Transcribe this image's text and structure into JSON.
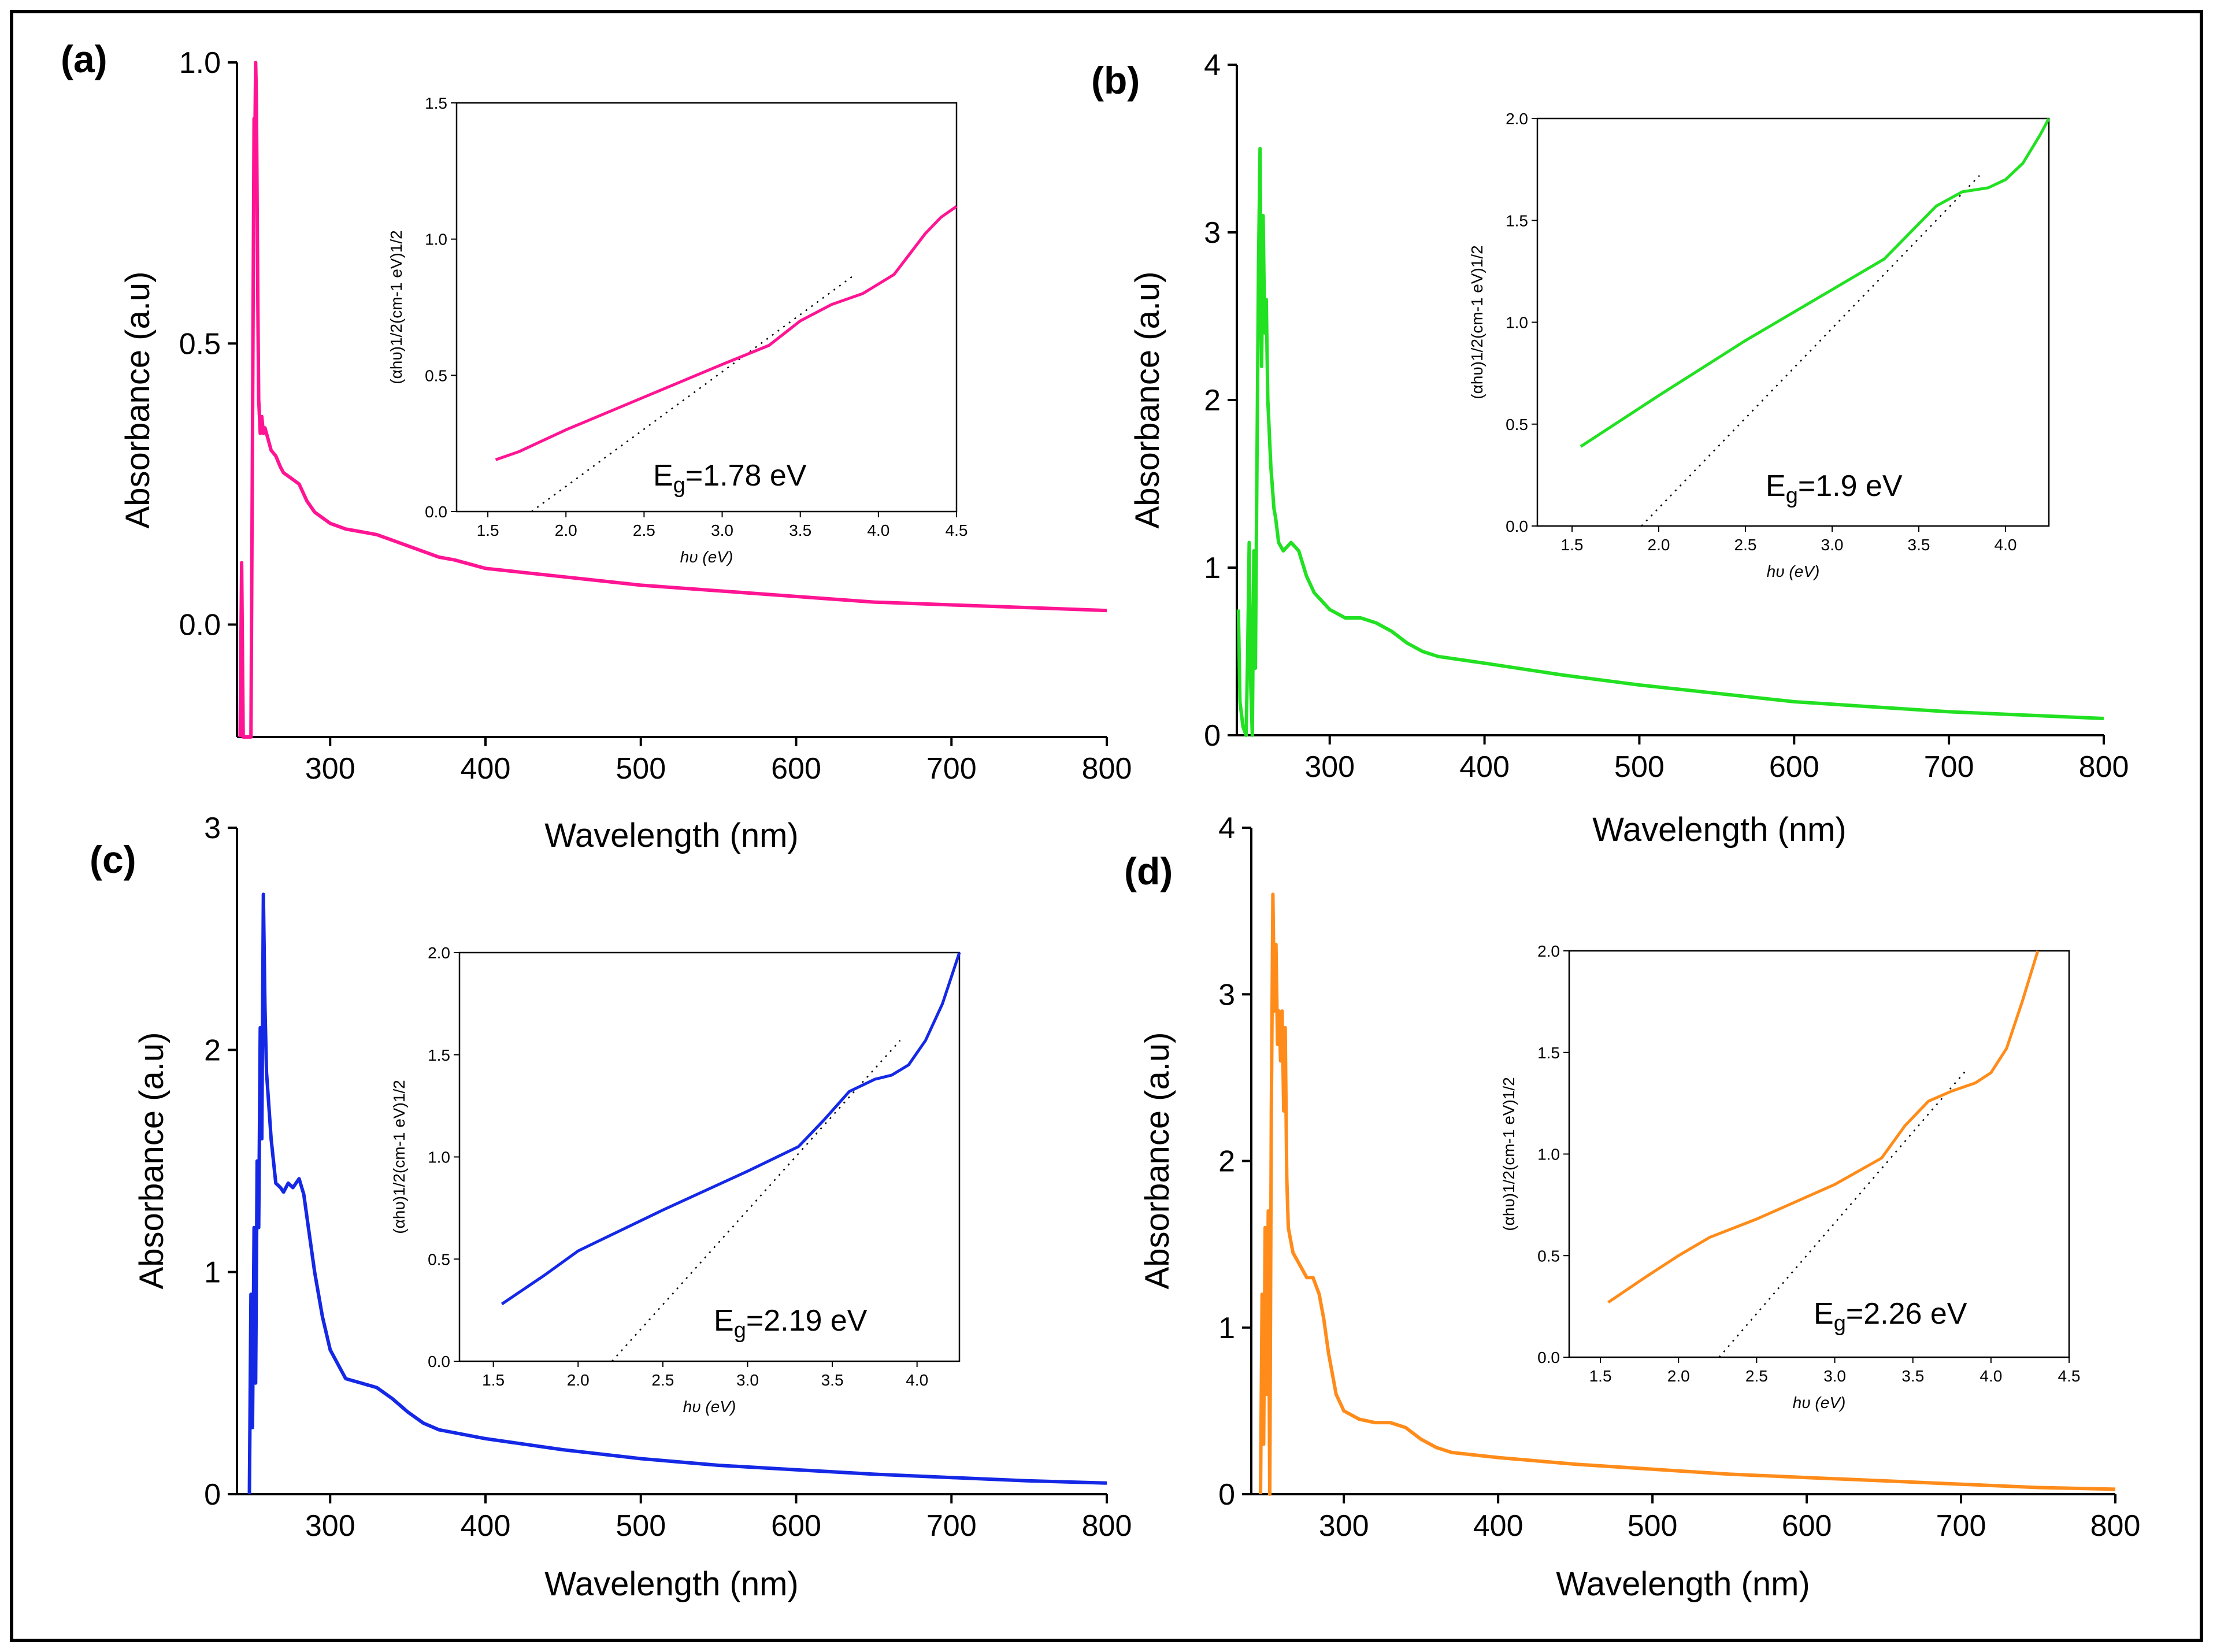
{
  "figure": {
    "border_color": "#000000"
  },
  "chart_data": [
    {
      "panel_label": "(a)",
      "type": "line",
      "color": "#ff1493",
      "xlabel": "Wavelength (nm)",
      "ylabel": "Absorbance (a.u)",
      "xlim": [
        240,
        800
      ],
      "ylim": [
        -0.2,
        1.0
      ],
      "xticks": [
        "300",
        "400",
        "500",
        "600",
        "700",
        "800"
      ],
      "xtick_values": [
        300,
        400,
        500,
        600,
        700,
        800
      ],
      "yticks": [
        "0.0",
        "0.5",
        "1.0"
      ],
      "ytick_values": [
        0.0,
        0.5,
        1.0
      ],
      "series": [
        {
          "x": [
            242,
            243,
            244,
            247,
            249,
            250,
            250.5,
            251,
            251.5,
            252,
            252.5,
            253,
            253.5,
            254,
            255,
            256,
            257,
            258,
            260,
            262,
            265,
            268,
            270,
            275,
            280,
            285,
            290,
            295,
            300,
            310,
            320,
            330,
            340,
            350,
            360,
            370,
            380,
            400,
            450,
            500,
            550,
            600,
            650,
            700,
            750,
            800
          ],
          "y": [
            -0.2,
            0.11,
            -0.2,
            -0.2,
            -0.2,
            0.34,
            0.62,
            0.9,
            0.85,
            1.0,
            0.94,
            0.75,
            0.55,
            0.4,
            0.34,
            0.37,
            0.34,
            0.35,
            0.33,
            0.31,
            0.3,
            0.28,
            0.27,
            0.26,
            0.25,
            0.22,
            0.2,
            0.19,
            0.18,
            0.17,
            0.165,
            0.16,
            0.15,
            0.14,
            0.13,
            0.12,
            0.115,
            0.1,
            0.085,
            0.07,
            0.06,
            0.05,
            0.04,
            0.035,
            0.03,
            0.025
          ]
        }
      ],
      "inset": {
        "xlabel": "hυ (eV)",
        "ylabel": "(αhυ)1/2(cm-1 eV)1/2",
        "xlim": [
          1.3,
          4.5
        ],
        "ylim": [
          0.0,
          1.5
        ],
        "xticks": [
          "1.5",
          "2.0",
          "2.5",
          "3.0",
          "3.5",
          "4.0",
          "4.5"
        ],
        "xtick_values": [
          1.5,
          2.0,
          2.5,
          3.0,
          3.5,
          4.0,
          4.5
        ],
        "yticks": [
          "0.0",
          "0.5",
          "1.0",
          "1.5"
        ],
        "ytick_values": [
          0.0,
          0.5,
          1.0,
          1.5
        ],
        "curve": {
          "x": [
            1.55,
            1.7,
            2.0,
            2.5,
            3.0,
            3.3,
            3.5,
            3.7,
            3.9,
            4.1,
            4.3,
            4.4,
            4.5
          ],
          "y": [
            0.19,
            0.22,
            0.3,
            0.42,
            0.54,
            0.61,
            0.7,
            0.76,
            0.8,
            0.87,
            1.02,
            1.08,
            1.12
          ]
        },
        "fit": {
          "x": [
            1.78,
            3.85
          ],
          "y": [
            0.0,
            0.87
          ]
        },
        "eg_main": "E",
        "eg_sub": "g",
        "eg_value": "=1.78 eV"
      }
    },
    {
      "panel_label": "(b)",
      "type": "line",
      "color": "#22e022",
      "xlabel": "Wavelength (nm)",
      "ylabel": "Absorbance (a.u)",
      "xlim": [
        240,
        800
      ],
      "ylim": [
        0,
        4
      ],
      "xticks": [
        "300",
        "400",
        "500",
        "600",
        "700",
        "800"
      ],
      "xtick_values": [
        300,
        400,
        500,
        600,
        700,
        800
      ],
      "yticks": [
        "0",
        "1",
        "2",
        "3",
        "4"
      ],
      "ytick_values": [
        0,
        1,
        2,
        3,
        4
      ],
      "series": [
        {
          "x": [
            241,
            242,
            244,
            246,
            247,
            248,
            249,
            250,
            251,
            252,
            253,
            254,
            255,
            256,
            257,
            258,
            259,
            260,
            262,
            264,
            265,
            267,
            270,
            275,
            280,
            285,
            290,
            295,
            300,
            310,
            320,
            330,
            340,
            350,
            360,
            370,
            400,
            450,
            500,
            550,
            600,
            650,
            700,
            750,
            800
          ],
          "y": [
            0.75,
            0.2,
            0.05,
            0.0,
            0.5,
            1.15,
            0.3,
            0.0,
            1.1,
            0.4,
            1.6,
            2.8,
            3.5,
            2.2,
            3.1,
            2.4,
            2.6,
            2.0,
            1.6,
            1.35,
            1.3,
            1.15,
            1.1,
            1.15,
            1.1,
            0.95,
            0.85,
            0.8,
            0.75,
            0.7,
            0.7,
            0.67,
            0.62,
            0.55,
            0.5,
            0.47,
            0.43,
            0.36,
            0.3,
            0.25,
            0.2,
            0.17,
            0.14,
            0.12,
            0.1
          ]
        }
      ],
      "inset": {
        "xlabel": "hυ (eV)",
        "ylabel": "(αhυ)1/2(cm-1 eV)1/2",
        "xlim": [
          1.3,
          4.25
        ],
        "ylim": [
          0.0,
          2.0
        ],
        "xticks": [
          "1.5",
          "2.0",
          "2.5",
          "3.0",
          "3.5",
          "4.0"
        ],
        "xtick_values": [
          1.5,
          2.0,
          2.5,
          3.0,
          3.5,
          4.0
        ],
        "yticks": [
          "0.0",
          "0.5",
          "1.0",
          "1.5",
          "2.0"
        ],
        "ytick_values": [
          0.0,
          0.5,
          1.0,
          1.5,
          2.0
        ],
        "curve": {
          "x": [
            1.55,
            2.0,
            2.5,
            3.0,
            3.3,
            3.45,
            3.6,
            3.75,
            3.9,
            4.0,
            4.1,
            4.2,
            4.25
          ],
          "y": [
            0.39,
            0.64,
            0.91,
            1.16,
            1.31,
            1.44,
            1.57,
            1.64,
            1.66,
            1.7,
            1.78,
            1.92,
            2.0
          ]
        },
        "fit": {
          "x": [
            1.9,
            3.85
          ],
          "y": [
            0.0,
            1.72
          ]
        },
        "eg_main": "E",
        "eg_sub": "g",
        "eg_value": "=1.9 eV"
      }
    },
    {
      "panel_label": "(c)",
      "type": "line",
      "color": "#1428e6",
      "xlabel": "Wavelength (nm)",
      "ylabel": "Absorbance (a.u)",
      "xlim": [
        240,
        800
      ],
      "ylim": [
        0,
        3
      ],
      "xticks": [
        "300",
        "400",
        "500",
        "600",
        "700",
        "800"
      ],
      "xtick_values": [
        300,
        400,
        500,
        600,
        700,
        800
      ],
      "yticks": [
        "0",
        "1",
        "2",
        "3"
      ],
      "ytick_values": [
        0,
        1,
        2,
        3
      ],
      "series": [
        {
          "x": [
            248,
            249,
            250,
            251,
            252,
            253,
            254,
            255,
            256,
            257,
            258,
            259,
            260,
            262,
            265,
            268,
            270,
            273,
            276,
            280,
            283,
            286,
            290,
            295,
            300,
            310,
            320,
            330,
            340,
            350,
            360,
            370,
            400,
            450,
            500,
            550,
            600,
            650,
            700,
            750,
            800
          ],
          "y": [
            0.0,
            0.9,
            0.3,
            1.2,
            0.5,
            1.5,
            1.2,
            2.1,
            1.6,
            2.7,
            2.2,
            1.9,
            1.8,
            1.6,
            1.4,
            1.38,
            1.36,
            1.4,
            1.38,
            1.42,
            1.35,
            1.2,
            1.0,
            0.8,
            0.65,
            0.52,
            0.5,
            0.48,
            0.43,
            0.37,
            0.32,
            0.29,
            0.25,
            0.2,
            0.16,
            0.13,
            0.11,
            0.09,
            0.075,
            0.06,
            0.05
          ]
        }
      ],
      "inset": {
        "xlabel": "hυ (eV)",
        "ylabel": "(αhυ)1/2(cm-1 eV)1/2",
        "xlim": [
          1.3,
          4.25
        ],
        "ylim": [
          0.0,
          2.0
        ],
        "xticks": [
          "1.5",
          "2.0",
          "2.5",
          "3.0",
          "3.5",
          "4.0"
        ],
        "xtick_values": [
          1.5,
          2.0,
          2.5,
          3.0,
          3.5,
          4.0
        ],
        "yticks": [
          "0.0",
          "0.5",
          "1.0",
          "1.5",
          "2.0"
        ],
        "ytick_values": [
          0.0,
          0.5,
          1.0,
          1.5,
          2.0
        ],
        "curve": {
          "x": [
            1.55,
            1.8,
            2.0,
            2.5,
            3.0,
            3.3,
            3.45,
            3.6,
            3.75,
            3.85,
            3.95,
            4.05,
            4.15,
            4.25
          ],
          "y": [
            0.28,
            0.42,
            0.54,
            0.74,
            0.93,
            1.05,
            1.18,
            1.32,
            1.38,
            1.4,
            1.45,
            1.57,
            1.75,
            2.0
          ]
        },
        "fit": {
          "x": [
            2.2,
            3.9
          ],
          "y": [
            0.0,
            1.57
          ]
        },
        "eg_main": "E",
        "eg_sub": "g",
        "eg_value": "=2.19 eV"
      }
    },
    {
      "panel_label": "(d)",
      "type": "line",
      "color": "#ff8c1a",
      "xlabel": "Wavelength (nm)",
      "ylabel": "Absorbance (a.u)",
      "xlim": [
        240,
        800
      ],
      "ylim": [
        0,
        4
      ],
      "xticks": [
        "300",
        "400",
        "500",
        "600",
        "700",
        "800"
      ],
      "xtick_values": [
        300,
        400,
        500,
        600,
        700,
        800
      ],
      "yticks": [
        "0",
        "1",
        "2",
        "3",
        "4"
      ],
      "ytick_values": [
        0,
        1,
        2,
        3,
        4
      ],
      "series": [
        {
          "x": [
            246,
            247,
            248,
            249,
            250,
            251,
            252,
            253,
            254,
            255,
            256,
            257,
            258,
            259,
            260,
            261,
            262,
            263,
            264,
            265,
            267,
            270,
            273,
            276,
            280,
            284,
            287,
            290,
            295,
            300,
            310,
            320,
            330,
            340,
            350,
            360,
            370,
            400,
            450,
            500,
            550,
            600,
            650,
            700,
            750,
            800
          ],
          "y": [
            0.0,
            1.2,
            0.3,
            1.6,
            0.6,
            1.7,
            0.0,
            2.3,
            3.6,
            2.9,
            3.3,
            2.7,
            2.9,
            2.6,
            2.9,
            2.3,
            2.8,
            1.9,
            1.6,
            1.55,
            1.45,
            1.4,
            1.35,
            1.3,
            1.3,
            1.2,
            1.05,
            0.85,
            0.6,
            0.5,
            0.45,
            0.43,
            0.43,
            0.4,
            0.33,
            0.28,
            0.25,
            0.22,
            0.18,
            0.15,
            0.12,
            0.1,
            0.08,
            0.06,
            0.04,
            0.03
          ]
        }
      ],
      "inset": {
        "xlabel": "hυ (eV)",
        "ylabel": "(αhυ)1/2(cm-1 eV)1/2",
        "xlim": [
          1.3,
          4.5
        ],
        "ylim": [
          0.0,
          2.0
        ],
        "xticks": [
          "1.5",
          "2.0",
          "2.5",
          "3.0",
          "3.5",
          "4.0",
          "4.5"
        ],
        "xtick_values": [
          1.5,
          2.0,
          2.5,
          3.0,
          3.5,
          4.0,
          4.5
        ],
        "yticks": [
          "0.0",
          "0.5",
          "1.0",
          "1.5",
          "2.0"
        ],
        "ytick_values": [
          0.0,
          0.5,
          1.0,
          1.5,
          2.0
        ],
        "curve": {
          "x": [
            1.55,
            1.8,
            2.0,
            2.2,
            2.5,
            3.0,
            3.3,
            3.45,
            3.6,
            3.75,
            3.9,
            4.0,
            4.1,
            4.2,
            4.3
          ],
          "y": [
            0.27,
            0.4,
            0.5,
            0.59,
            0.68,
            0.85,
            0.98,
            1.14,
            1.26,
            1.31,
            1.35,
            1.4,
            1.52,
            1.75,
            2.0
          ]
        },
        "fit": {
          "x": [
            2.26,
            3.85
          ],
          "y": [
            0.0,
            1.42
          ]
        },
        "eg_main": "E",
        "eg_sub": "g",
        "eg_value": "=2.26 eV"
      }
    }
  ]
}
